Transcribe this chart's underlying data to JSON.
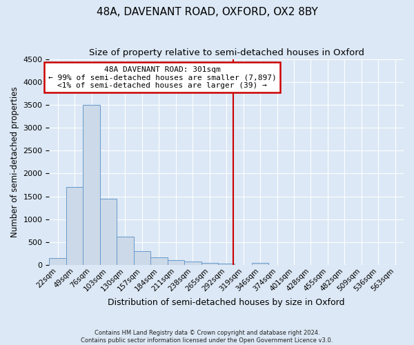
{
  "title": "48A, DAVENANT ROAD, OXFORD, OX2 8BY",
  "subtitle": "Size of property relative to semi-detached houses in Oxford",
  "xlabel": "Distribution of semi-detached houses by size in Oxford",
  "ylabel": "Number of semi-detached properties",
  "footnote1": "Contains HM Land Registry data © Crown copyright and database right 2024.",
  "footnote2": "Contains public sector information licensed under the Open Government Licence v3.0.",
  "annotation_line1": "48A DAVENANT ROAD: 301sqm",
  "annotation_line2": "← 99% of semi-detached houses are smaller (7,897)",
  "annotation_line3": "<1% of semi-detached houses are larger (39) →",
  "bar_values": [
    150,
    1700,
    3500,
    1450,
    620,
    300,
    160,
    100,
    70,
    50,
    30,
    0,
    50,
    0,
    0,
    0,
    0,
    0,
    0,
    0,
    0
  ],
  "bin_labels": [
    "22sqm",
    "49sqm",
    "76sqm",
    "103sqm",
    "130sqm",
    "157sqm",
    "184sqm",
    "211sqm",
    "238sqm",
    "265sqm",
    "292sqm",
    "319sqm",
    "346sqm",
    "374sqm",
    "401sqm",
    "428sqm",
    "455sqm",
    "482sqm",
    "509sqm",
    "536sqm",
    "563sqm"
  ],
  "bar_color": "#ccd9e8",
  "bar_edge_color": "#6699cc",
  "bg_color": "#dce8f5",
  "grid_color": "#ffffff",
  "red_line_x": 10.4,
  "ylim": [
    0,
    4500
  ],
  "red_line_color": "#cc0000",
  "annotation_box_edge_color": "#cc0000",
  "title_fontsize": 11,
  "subtitle_fontsize": 9.5,
  "xlabel_fontsize": 9,
  "ylabel_fontsize": 8.5,
  "tick_fontsize": 7.5,
  "annot_fontsize": 8
}
